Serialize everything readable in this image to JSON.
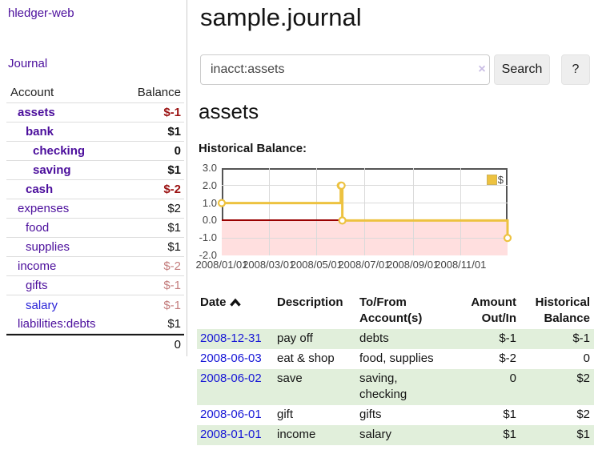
{
  "app": {
    "title": "hledger-web"
  },
  "colors": {
    "link_purple": "#4b0e9c",
    "link_blue": "#2a23d8",
    "negative_strong": "#9b1212",
    "negative_soft": "#c47d7d",
    "date_link_blue": "#1717d6",
    "row_green": "#e1efdb",
    "series_gold": "#edc240"
  },
  "sidebar": {
    "journal_link": "Journal",
    "table": {
      "account_header": "Account",
      "balance_header": "Balance",
      "rows": [
        {
          "name": "assets",
          "depth": 1,
          "bold": true,
          "balance": "$-1",
          "balance_style": "neg-strong"
        },
        {
          "name": "bank",
          "depth": 2,
          "bold": true,
          "balance": "$1",
          "balance_style": "pos"
        },
        {
          "name": "checking",
          "depth": 3,
          "bold": true,
          "balance": "0",
          "balance_style": "pos"
        },
        {
          "name": "saving",
          "depth": 3,
          "bold": true,
          "balance": "$1",
          "balance_style": "pos"
        },
        {
          "name": "cash",
          "depth": 2,
          "bold": true,
          "balance": "$-2",
          "balance_style": "neg-strong"
        },
        {
          "name": "expenses",
          "depth": 1,
          "bold": false,
          "balance": "$2",
          "balance_style": "pos"
        },
        {
          "name": "food",
          "depth": 2,
          "bold": false,
          "balance": "$1",
          "balance_style": "pos"
        },
        {
          "name": "supplies",
          "depth": 2,
          "bold": false,
          "balance": "$1",
          "balance_style": "pos"
        },
        {
          "name": "income",
          "depth": 1,
          "bold": false,
          "balance": "$-2",
          "balance_style": "neg-soft"
        },
        {
          "name": "gifts",
          "depth": 2,
          "bold": false,
          "balance": "$-1",
          "balance_style": "neg-soft"
        },
        {
          "name": "salary",
          "depth": 2,
          "bold": false,
          "balance": "$-1",
          "balance_style": "neg-soft",
          "link_color": "blue"
        },
        {
          "name": "liabilities:debts",
          "depth": 1,
          "bold": false,
          "balance": "$1",
          "balance_style": "pos"
        }
      ],
      "total": "0"
    }
  },
  "header": {
    "title": "sample.journal"
  },
  "search": {
    "value": "inacct:assets",
    "clear_icon": "×",
    "button_label": "Search",
    "help_label": "?"
  },
  "account_page": {
    "heading": "assets",
    "chart_title": "Historical Balance:"
  },
  "chart_data": {
    "type": "line",
    "step": true,
    "title": "Historical Balance:",
    "legend": [
      {
        "label": "$",
        "color": "#edc240"
      }
    ],
    "series": [
      {
        "name": "$",
        "color": "#edc240",
        "points": [
          [
            "2008-01-01",
            1
          ],
          [
            "2008-06-01",
            2
          ],
          [
            "2008-06-02",
            2
          ],
          [
            "2008-06-03",
            0
          ],
          [
            "2008-12-31",
            -1
          ]
        ]
      }
    ],
    "xlim": [
      "2008-01-01",
      "2008-12-31"
    ],
    "ylim": [
      -2,
      3
    ],
    "yticks": [
      "3.0",
      "2.0",
      "1.0",
      "0.0",
      "-1.0",
      "-2.0"
    ],
    "ytick_values": [
      3,
      2,
      1,
      0,
      -1,
      -2
    ],
    "xticks": [
      "2008/01/01",
      "2008/03/01",
      "2008/05/01",
      "2008/07/01",
      "2008/09/01",
      "2008/11/01"
    ],
    "grid": true,
    "negative_fill": "#ffdfdf",
    "zero_line_color": "#9a0000",
    "legend_position": "top-right"
  },
  "register": {
    "columns": [
      {
        "label": "Date",
        "align": "left",
        "sorted": "ascending"
      },
      {
        "label": "Description",
        "align": "left"
      },
      {
        "label": "To/From Account(s)",
        "align": "left"
      },
      {
        "label": "Amount Out/In",
        "align": "right"
      },
      {
        "label": "Historical Balance",
        "align": "right"
      }
    ],
    "rows": [
      {
        "date": "2008-12-31",
        "description": "pay off",
        "accounts": "debts",
        "amount": "$-1",
        "amount_neg": true,
        "balance": "$-1",
        "balance_neg": true
      },
      {
        "date": "2008-06-03",
        "description": "eat & shop",
        "accounts": "food, supplies",
        "amount": "$-2",
        "amount_neg": true,
        "balance": "0",
        "balance_neg": false
      },
      {
        "date": "2008-06-02",
        "description": "save",
        "accounts": "saving, checking",
        "amount": "0",
        "amount_neg": false,
        "balance": "$2",
        "balance_neg": false
      },
      {
        "date": "2008-06-01",
        "description": "gift",
        "accounts": "gifts",
        "amount": "$1",
        "amount_neg": false,
        "balance": "$2",
        "balance_neg": false
      },
      {
        "date": "2008-01-01",
        "description": "income",
        "accounts": "salary",
        "amount": "$1",
        "amount_neg": false,
        "balance": "$1",
        "balance_neg": false
      }
    ]
  }
}
